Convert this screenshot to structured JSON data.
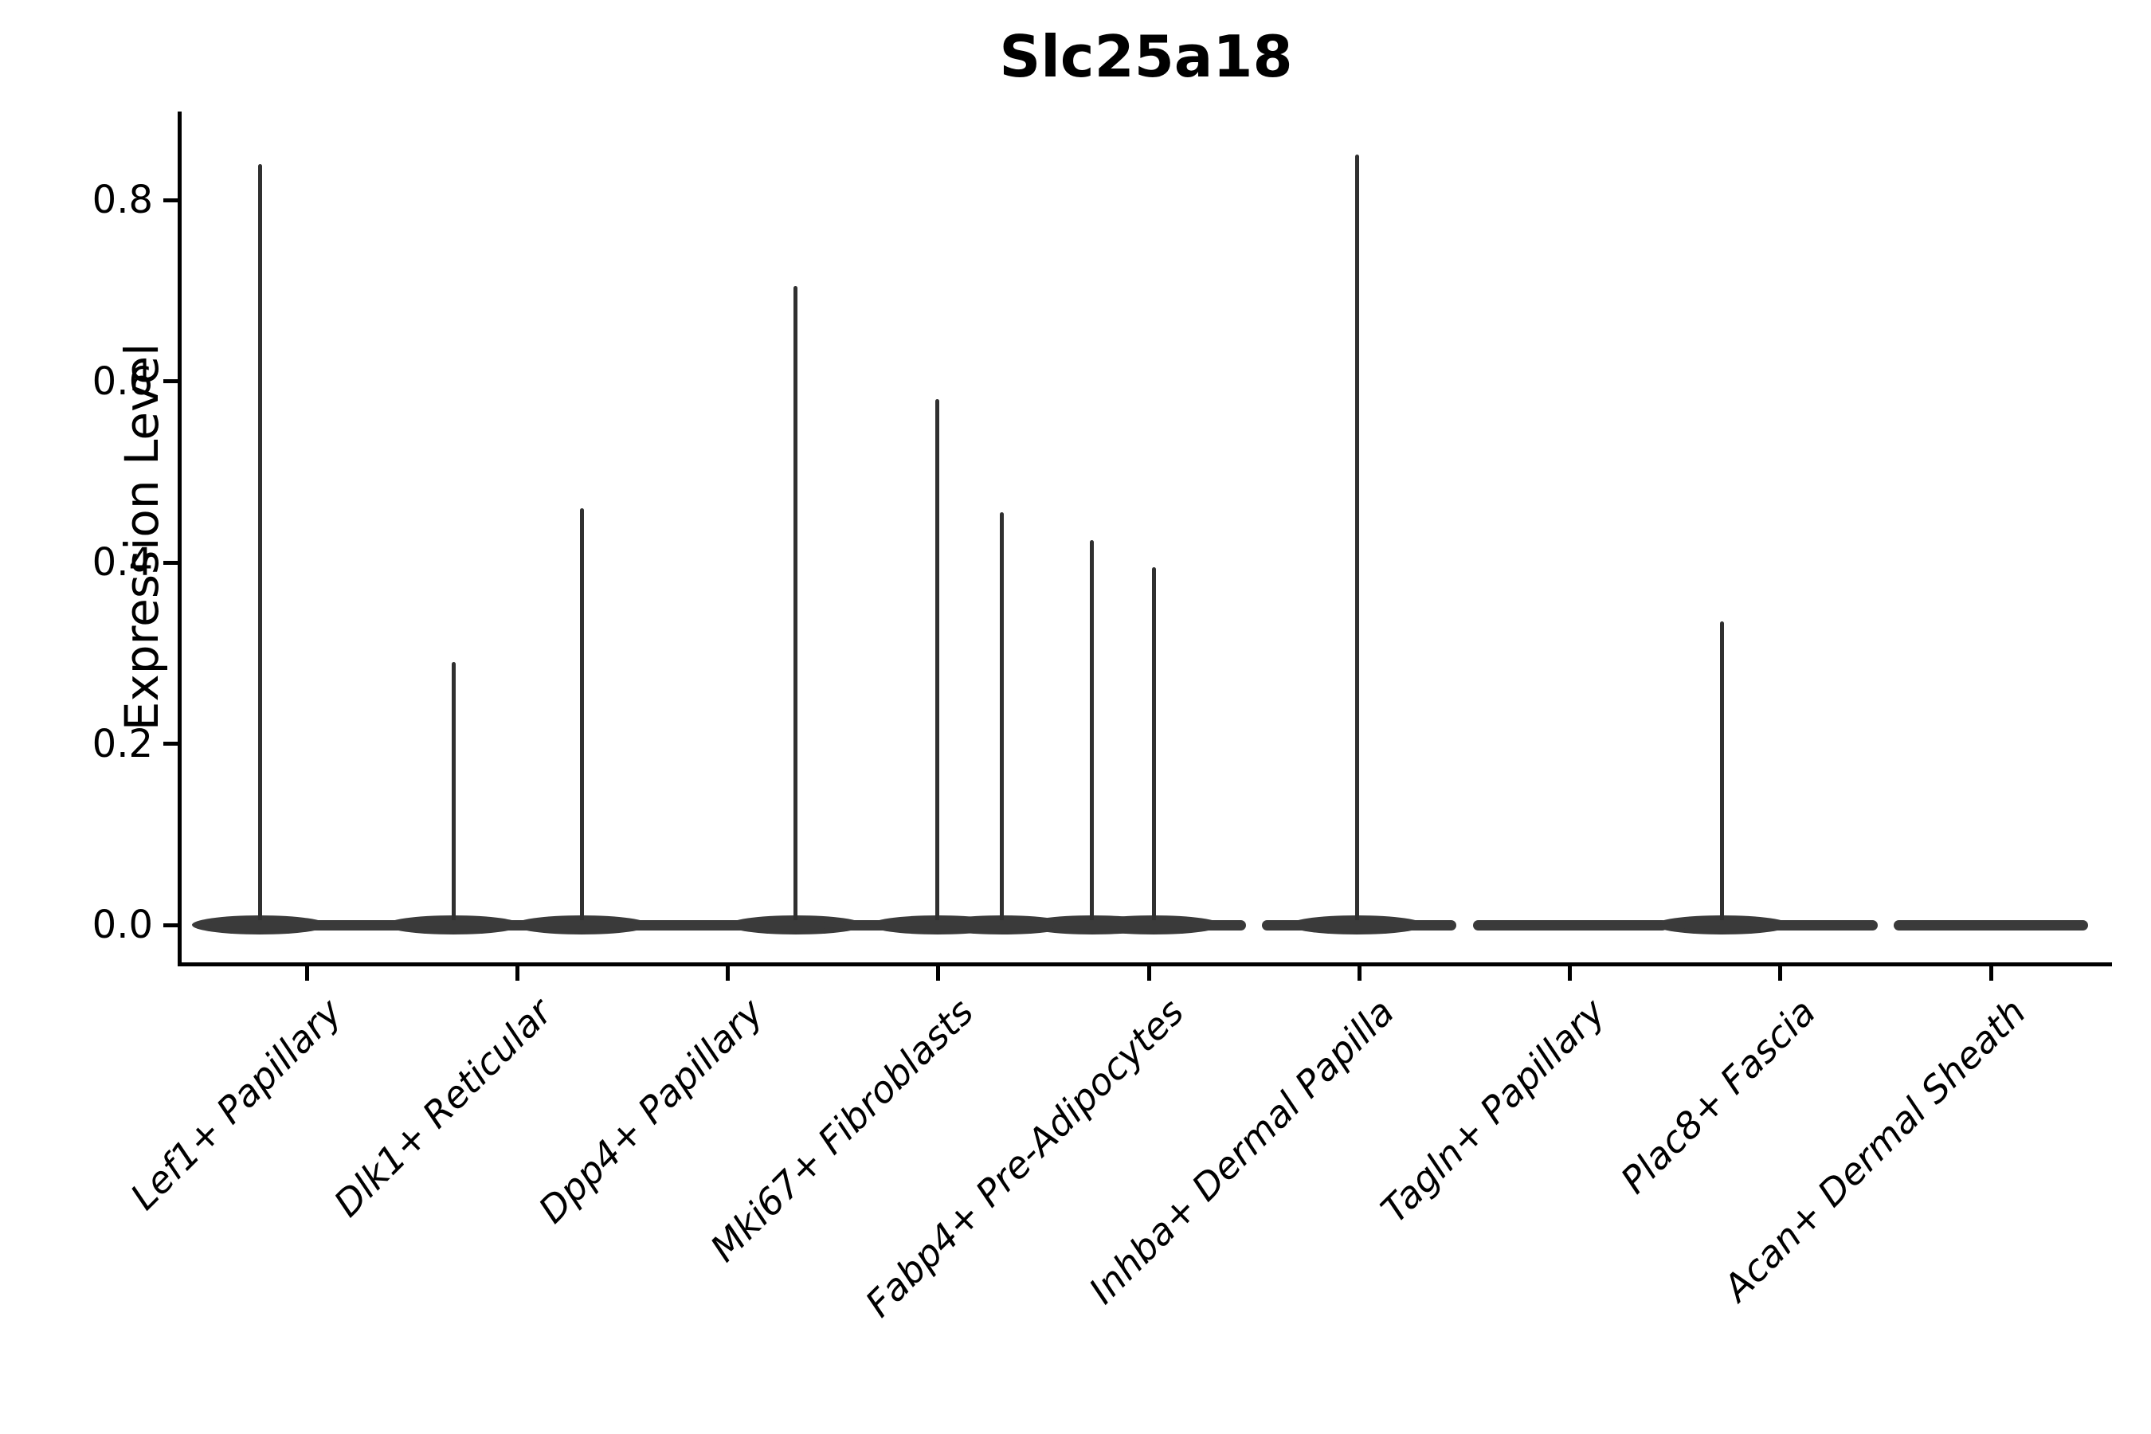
{
  "title": "Slc25a18",
  "y_axis": {
    "label": "Expression Level",
    "tick_labels": [
      "0.0",
      "0.2",
      "0.4",
      "0.6",
      "0.8"
    ]
  },
  "x_axis": {
    "tick_labels": [
      "Lef1+ Papillary",
      "Dlk1+ Reticular",
      "Dpp4+ Papillary",
      "Mki67+ Fibroblasts",
      "Fabp4+ Pre-Adipocytes",
      "Inhba+ Dermal Papilla",
      "Tagln+ Papillary",
      "Plac8+ Fascia",
      "Acan+ Dermal Sheath"
    ]
  },
  "chart_data": {
    "type": "violin",
    "title": "Slc25a18",
    "xlabel": "",
    "ylabel": "Expression Level",
    "ylim": [
      -0.041,
      0.898
    ],
    "yticks": [
      0.0,
      0.2,
      0.4,
      0.6,
      0.8
    ],
    "grid": false,
    "legend": "none",
    "categories": [
      "Lef1+ Papillary",
      "Dlk1+ Reticular",
      "Dpp4+ Papillary",
      "Mki67+ Fibroblasts",
      "Fabp4+ Pre-Adipocytes",
      "Inhba+ Dermal Papilla",
      "Tagln+ Papillary",
      "Plac8+ Fascia",
      "Acan+ Dermal Sheath"
    ],
    "violins": [
      {
        "category": "Lef1+ Papillary",
        "mass_at_zero": true,
        "spikes": [
          {
            "offset_frac": -0.223,
            "peak": 0.84
          }
        ]
      },
      {
        "category": "Dlk1+ Reticular",
        "mass_at_zero": true,
        "spikes": [
          {
            "offset_frac": -0.303,
            "peak": 0.29
          },
          {
            "offset_frac": 0.307,
            "peak": 0.46
          }
        ]
      },
      {
        "category": "Dpp4+ Papillary",
        "mass_at_zero": true,
        "spikes": [
          {
            "offset_frac": 0.323,
            "peak": 0.705
          }
        ]
      },
      {
        "category": "Mki67+ Fibroblasts",
        "mass_at_zero": true,
        "spikes": [
          {
            "offset_frac": -0.003,
            "peak": 0.58
          },
          {
            "offset_frac": 0.303,
            "peak": 0.455
          }
        ]
      },
      {
        "category": "Fabp4+ Pre-Adipocytes",
        "mass_at_zero": true,
        "spikes": [
          {
            "offset_frac": -0.269,
            "peak": 0.425
          },
          {
            "offset_frac": 0.023,
            "peak": 0.395
          }
        ]
      },
      {
        "category": "Inhba+ Dermal Papilla",
        "mass_at_zero": true,
        "spikes": [
          {
            "offset_frac": -0.012,
            "peak": 0.85
          }
        ]
      },
      {
        "category": "Tagln+ Papillary",
        "mass_at_zero": true,
        "spikes": []
      },
      {
        "category": "Plac8+ Fascia",
        "mass_at_zero": true,
        "spikes": [
          {
            "offset_frac": -0.276,
            "peak": 0.335
          }
        ]
      },
      {
        "category": "Acan+ Dermal Sheath",
        "mass_at_zero": true,
        "spikes": []
      }
    ],
    "style": {
      "violin_fill": "#3a3a3a",
      "spike_color": "#303030",
      "axis_color": "#000000",
      "text_color": "#000000",
      "background": "#ffffff"
    }
  }
}
